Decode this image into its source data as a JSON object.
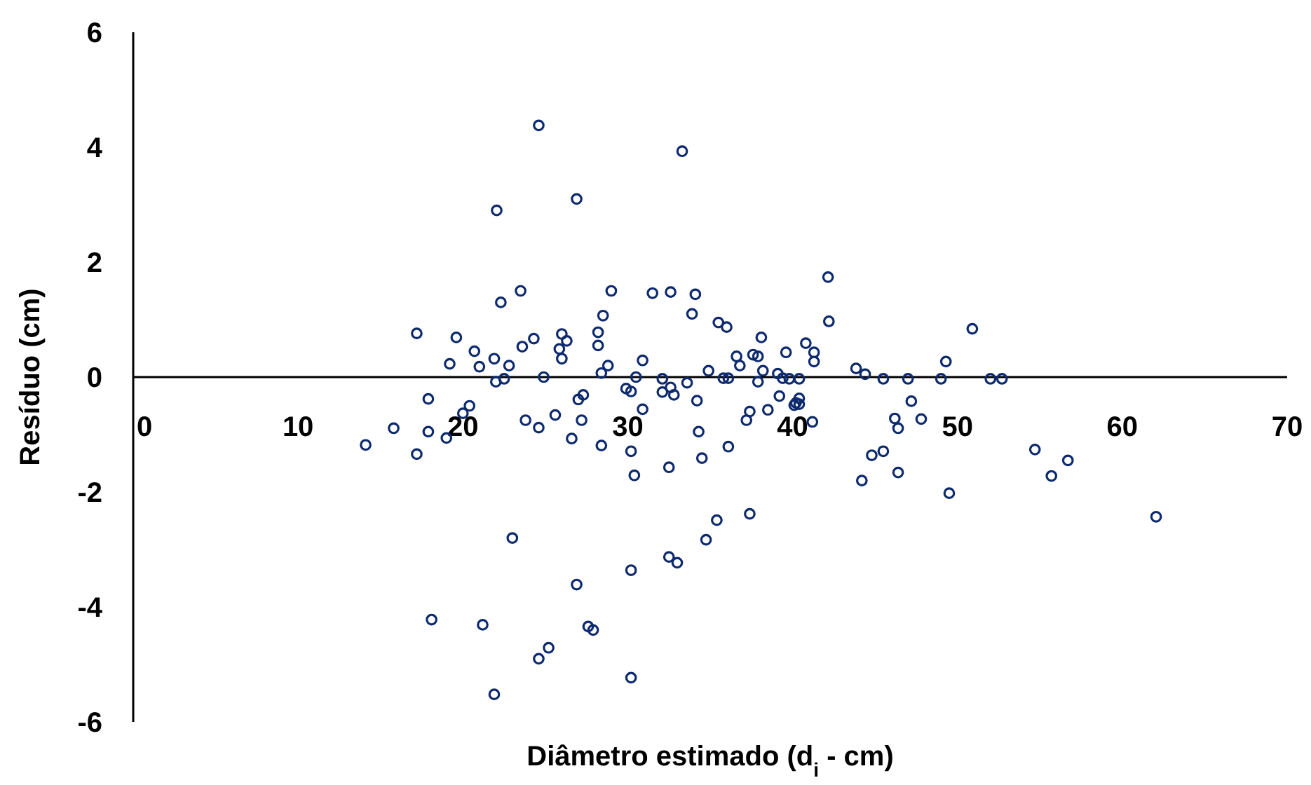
{
  "chart_data": {
    "type": "scatter",
    "xlabel": "Diâmetro estimado (d$_{i}$ - cm)",
    "ylabel": "Resíduo (cm)",
    "xlim": [
      0,
      70
    ],
    "xticks": [
      0,
      10,
      20,
      30,
      40,
      50,
      60,
      70
    ],
    "ylim": [
      -6,
      6
    ],
    "yticks": [
      -6,
      -4,
      -2,
      0,
      2,
      4,
      6
    ],
    "grid": false,
    "marker": "circle",
    "series": [
      {
        "color": "#0d2a6e",
        "x": [
          14.1,
          15.8,
          17.2,
          17.9,
          17.9,
          18.1,
          19.0,
          20.0,
          20.4,
          21.2,
          21.9,
          23.0,
          23.8,
          24.6,
          24.6,
          25.2,
          25.6,
          26.6,
          26.9,
          27.0,
          27.3,
          27.2,
          27.6,
          27.9,
          28.4,
          29.9,
          30.2,
          30.2,
          30.2,
          30.2,
          30.4,
          30.9,
          32.1,
          32.1,
          32.5,
          32.5,
          32.6,
          32.8,
          33.0,
          33.6,
          34.2,
          34.3,
          34.5,
          34.75,
          35.4,
          36.1,
          37.4,
          37.2,
          37.4,
          38.5,
          39.2,
          40.1,
          21.0,
          22.0,
          22.5,
          24.9,
          28.4,
          30.5,
          35.8,
          36.1,
          37.9,
          39.4,
          24.6,
          33.3,
          22.05,
          26.9,
          23.5,
          22.3,
          29.0,
          31.5,
          32.6,
          34.1,
          28.5,
          33.9,
          35.5,
          36.0,
          38.1,
          17.2,
          19.6,
          20.7,
          19.2,
          21.9,
          22.8,
          23.6,
          24.3,
          26.0,
          26.3,
          25.85,
          26.0,
          28.2,
          28.2,
          28.8,
          30.9,
          34.9,
          36.6,
          36.8,
          37.6,
          37.9,
          39.6,
          38.2,
          39.1,
          42.15,
          42.2,
          40.8,
          41.3,
          41.3,
          39.8,
          40.4,
          40.4,
          40.2,
          40.4,
          41.2,
          43.85,
          44.4,
          45.5,
          47.0,
          49.0,
          49.3,
          50.9,
          52.0,
          52.7,
          47.2,
          46.2,
          46.4,
          47.8,
          44.8,
          45.5,
          44.2,
          46.4,
          49.5,
          54.7,
          55.7,
          56.7,
          62.05
        ],
        "values": [
          -1.18,
          -0.89,
          -1.34,
          -0.38,
          -0.95,
          -4.22,
          -1.06,
          -0.63,
          -0.5,
          -4.31,
          -5.52,
          -2.8,
          -0.75,
          -0.88,
          -4.9,
          -4.71,
          -0.66,
          -1.07,
          -3.61,
          -0.39,
          -0.31,
          -0.75,
          -4.34,
          -4.4,
          -1.19,
          -0.2,
          -0.25,
          -1.29,
          -3.36,
          -5.23,
          -1.71,
          -0.56,
          -0.26,
          -0.03,
          -1.57,
          -3.13,
          -0.18,
          -0.31,
          -3.23,
          -0.1,
          -0.41,
          -0.95,
          -1.41,
          -2.83,
          -2.49,
          -1.21,
          -2.38,
          -0.75,
          -0.6,
          -0.57,
          -0.33,
          -0.49,
          0.18,
          -0.08,
          -0.03,
          0.0,
          0.07,
          0.0,
          -0.02,
          -0.02,
          -0.08,
          -0.02,
          4.38,
          3.93,
          2.9,
          3.1,
          1.5,
          1.3,
          1.5,
          1.46,
          1.48,
          1.44,
          1.07,
          1.1,
          0.95,
          0.87,
          0.69,
          0.76,
          0.69,
          0.45,
          0.23,
          0.32,
          0.2,
          0.53,
          0.67,
          0.75,
          0.63,
          0.49,
          0.32,
          0.78,
          0.55,
          0.2,
          0.29,
          0.11,
          0.36,
          0.2,
          0.39,
          0.36,
          0.43,
          0.11,
          0.06,
          1.74,
          0.97,
          0.59,
          0.43,
          0.27,
          -0.03,
          -0.03,
          -0.37,
          -0.45,
          -0.47,
          -0.78,
          0.15,
          0.05,
          -0.03,
          -0.03,
          -0.03,
          0.27,
          0.84,
          -0.03,
          -0.03,
          -0.42,
          -0.72,
          -0.89,
          -0.73,
          -1.36,
          -1.29,
          -1.8,
          -1.66,
          -2.02,
          -1.26,
          -1.72,
          -1.45,
          -2.43
        ]
      }
    ]
  }
}
